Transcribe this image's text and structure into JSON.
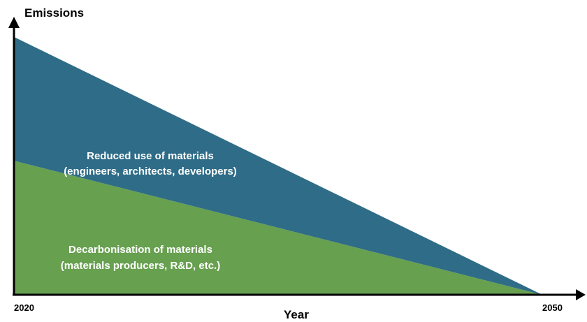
{
  "chart_data": {
    "type": "area",
    "stacked": true,
    "x": [
      2020,
      2050
    ],
    "xlabel": "Year",
    "ylabel": "Emissions",
    "xlim": [
      2020,
      2050
    ],
    "ylim": [
      0,
      1.1
    ],
    "grid": false,
    "tick_labels": [
      "2020",
      "2050"
    ],
    "series": [
      {
        "label_lines": [
          "Decarbonisation of materials",
          "(materials producers, R&D, etc.)"
        ],
        "values": [
          0.52,
          0
        ],
        "color": "#67a04f"
      },
      {
        "label_lines": [
          "Reduced use of materials",
          "(engineers, architects, developers)"
        ],
        "values": [
          0.48,
          0
        ],
        "color": "#2e6c87"
      }
    ]
  }
}
